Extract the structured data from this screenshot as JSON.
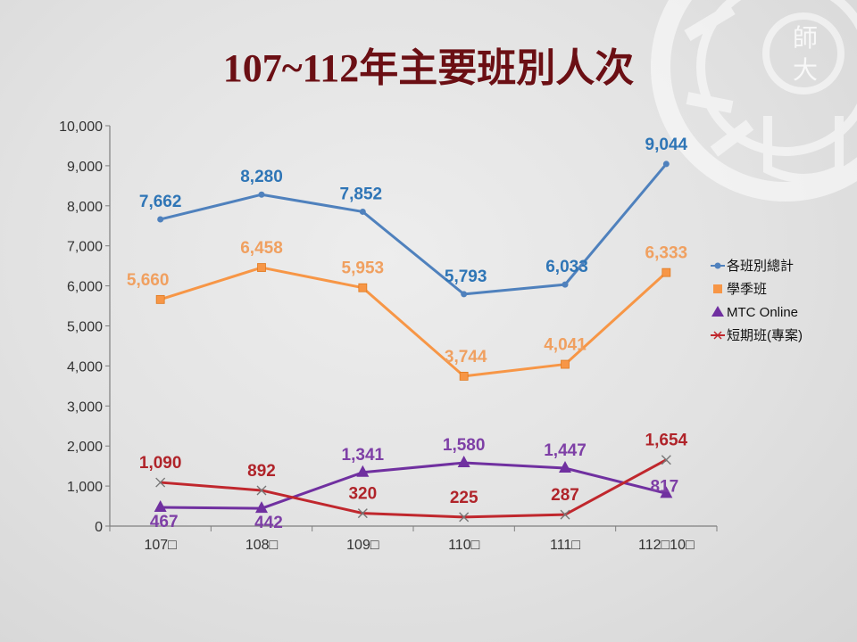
{
  "slide": {
    "title": "107~112年主要班別人次"
  },
  "chart_data": {
    "type": "line",
    "title": "107~112年主要班別人次",
    "categories": [
      "107□",
      "108□",
      "109□",
      "110□",
      "111□",
      "112□10□"
    ],
    "ylim": [
      0,
      10000
    ],
    "yticks": [
      "0",
      "1,000",
      "2,000",
      "3,000",
      "4,000",
      "5,000",
      "6,000",
      "7,000",
      "8,000",
      "9,000",
      "10,000"
    ],
    "grid": false,
    "legend_position": "right",
    "series": [
      {
        "name": "各班別總計",
        "color": "#4f81bd",
        "label_color": "#2e75b6",
        "marker": "circle",
        "values": [
          7662,
          8280,
          7852,
          5793,
          6033,
          9044
        ],
        "labels": [
          "7,662",
          "8,280",
          "7,852",
          "5,793",
          "6,033",
          "9,044"
        ]
      },
      {
        "name": "學季班",
        "color": "#f79646",
        "label_color": "#f0a060",
        "marker": "square",
        "values": [
          5660,
          6458,
          5953,
          3744,
          4041,
          6333
        ],
        "labels": [
          "5,660",
          "6,458",
          "5,953",
          "3,744",
          "4,041",
          "6,333"
        ]
      },
      {
        "name": "MTC Online",
        "color": "#7030a0",
        "label_color": "#7e3fa6",
        "marker": "triangle",
        "values": [
          467,
          442,
          1341,
          1580,
          1447,
          817
        ],
        "labels": [
          "467",
          "442",
          "1,341",
          "1,580",
          "1,447",
          "817"
        ]
      },
      {
        "name": "短期班(專案)",
        "color": "#c0272d",
        "label_color": "#b0242a",
        "marker": "x",
        "values": [
          1090,
          892,
          320,
          225,
          287,
          1654
        ],
        "labels": [
          "1,090",
          "892",
          "320",
          "225",
          "287",
          "1,654"
        ]
      }
    ]
  },
  "watermark": {
    "text_top": "師",
    "text_bottom": "大"
  }
}
